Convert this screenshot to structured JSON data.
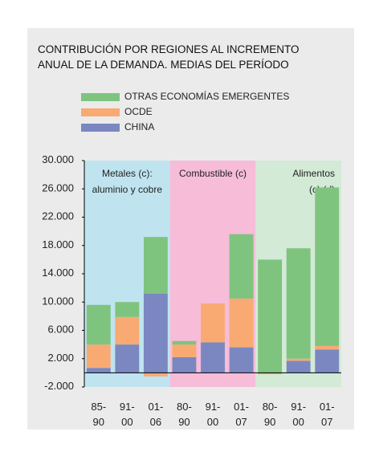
{
  "chart_data": {
    "type": "stacked-bar",
    "title": "CONTRIBUCIÓN POR REGIONES AL INCREMENTO\nANUAL DE LA DEMANDA. MEDIAS DEL PERÍODO",
    "categories": [
      "85-\n90",
      "91-\n00",
      "01-\n06",
      "80-\n90",
      "91-\n00",
      "01-\n07",
      "80-\n90",
      "91-\n00",
      "01-\n07"
    ],
    "groups": [
      {
        "label": "Metales (c):\naluminio y cobre",
        "color": "#bfe4ef"
      },
      {
        "label": "Combustible (c)",
        "color": "#f6bcd8"
      },
      {
        "label": "Alimentos\n(c) (d)",
        "color": "#d3ead6"
      }
    ],
    "series": [
      {
        "name": "OTRAS ECONOMÍAS EMERGENTES",
        "color": "#7ec47f",
        "values": [
          5600,
          2100,
          8000,
          500,
          0,
          9100,
          16000,
          15600,
          22400
        ]
      },
      {
        "name": "OCDE",
        "color": "#f8aa72",
        "values": [
          3300,
          3900,
          -500,
          1800,
          5500,
          6900,
          -200,
          300,
          500
        ]
      },
      {
        "name": "CHINA",
        "color": "#7b87c1",
        "values": [
          700,
          4000,
          11200,
          2200,
          4300,
          3600,
          0,
          1700,
          3300
        ]
      }
    ],
    "ylim": [
      -2000,
      30000
    ],
    "yticks": [
      {
        "value": -2000,
        "label": "-2.000"
      },
      {
        "value": 2000,
        "label": "2.000"
      },
      {
        "value": 6000,
        "label": "6.000"
      },
      {
        "value": 10000,
        "label": "10.000"
      },
      {
        "value": 14000,
        "label": "14.000"
      },
      {
        "value": 18000,
        "label": "18.000"
      },
      {
        "value": 22000,
        "label": "22.000"
      },
      {
        "value": 26000,
        "label": "26.000"
      },
      {
        "value": 30000,
        "label": "30.000"
      }
    ]
  }
}
